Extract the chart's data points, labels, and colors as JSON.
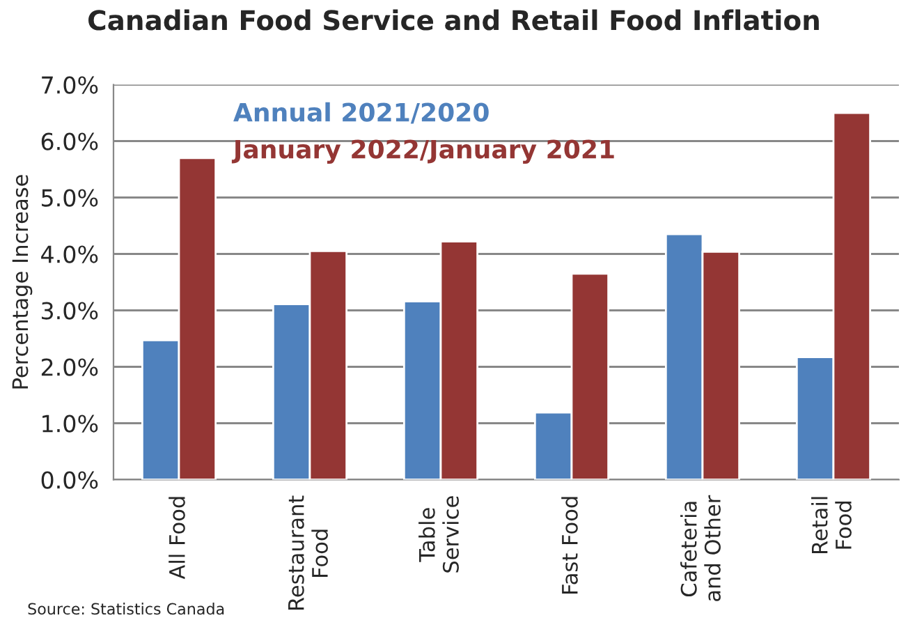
{
  "chart_data": {
    "type": "bar",
    "title": "Canadian Food Service and Retail Food Inflation",
    "ylabel": "Percentage Increase",
    "categories": [
      "All Food",
      "Restaurant\nFood",
      "Table\nService",
      "Fast Food",
      "Cafeteria\nand Other",
      "Retail\nFood"
    ],
    "series": [
      {
        "name": "Annual 2021/2020",
        "color": "#4f81bd",
        "values": [
          2.47,
          3.11,
          3.16,
          1.19,
          4.35,
          2.17
        ]
      },
      {
        "name": "January 2022/January 2021",
        "color": "#943634",
        "values": [
          5.7,
          4.05,
          4.22,
          3.65,
          4.04,
          6.5
        ]
      }
    ],
    "ylim": [
      0,
      7
    ],
    "yticks": [
      {
        "value": 0,
        "label": "0.0%"
      },
      {
        "value": 1,
        "label": "1.0%"
      },
      {
        "value": 2,
        "label": "2.0%"
      },
      {
        "value": 3,
        "label": "3.0%"
      },
      {
        "value": 4,
        "label": "4.0%"
      },
      {
        "value": 5,
        "label": "5.0%"
      },
      {
        "value": 6,
        "label": "6.0%"
      },
      {
        "value": 7,
        "label": "7.0%"
      }
    ],
    "grid": "y",
    "legend": "top left",
    "annotations": [
      "Source: Statistics Canada"
    ]
  }
}
